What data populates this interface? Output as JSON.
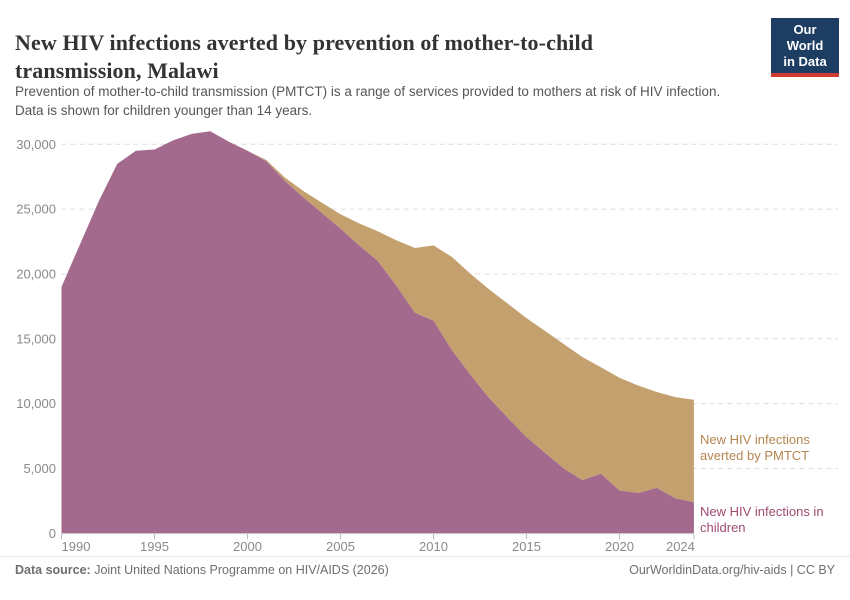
{
  "logo": {
    "line1": "Our World",
    "line2": "in Data",
    "bg": "#1d3d63",
    "accent": "#cf3a33"
  },
  "chart_data": {
    "type": "area",
    "stacked": true,
    "title": "New HIV infections averted by prevention of mother-to-child transmission, Malawi",
    "subtitle_lines": [
      "Prevention of mother-to-child transmission (PMTCT) is a range of services provided to mothers at risk of HIV infection.",
      "Data is shown for children younger than 14 years."
    ],
    "x": [
      1990,
      1991,
      1992,
      1993,
      1994,
      1995,
      1996,
      1997,
      1998,
      1999,
      2000,
      2001,
      2002,
      2003,
      2004,
      2005,
      2006,
      2007,
      2008,
      2009,
      2010,
      2011,
      2012,
      2013,
      2014,
      2015,
      2016,
      2017,
      2018,
      2019,
      2020,
      2021,
      2022,
      2023,
      2024
    ],
    "xlim": [
      1990,
      2024
    ],
    "ylim": [
      0,
      31000
    ],
    "xticks": [
      1990,
      1995,
      2000,
      2005,
      2010,
      2015,
      2020,
      2024
    ],
    "yticks": [
      0,
      5000,
      10000,
      15000,
      20000,
      25000,
      30000
    ],
    "ytick_labels": [
      "0",
      "5,000",
      "10,000",
      "15,000",
      "20,000",
      "25,000",
      "30,000"
    ],
    "grid": "horizontal-dashed",
    "legend_position": "right-inline",
    "series": [
      {
        "name": "New HIV infections in children",
        "color": "#a36a8e",
        "label_color": "#a04a73",
        "values": [
          19000,
          22300,
          25600,
          28500,
          29500,
          29600,
          30300,
          30800,
          31000,
          30200,
          29500,
          28700,
          27200,
          25900,
          24700,
          23500,
          22200,
          21000,
          19100,
          17000,
          16400,
          14100,
          12200,
          10400,
          8900,
          7400,
          6200,
          5000,
          4100,
          4600,
          3300,
          3100,
          3500,
          2700,
          2400
        ]
      },
      {
        "name": "New HIV infections averted by PMTCT",
        "color": "#c5a06f",
        "label_color": "#b5854f",
        "values": [
          0,
          0,
          0,
          0,
          0,
          0,
          0,
          0,
          0,
          0,
          0,
          100,
          250,
          500,
          800,
          1100,
          1700,
          2300,
          3500,
          5000,
          5800,
          7200,
          7800,
          8400,
          8800,
          9200,
          9400,
          9600,
          9500,
          8200,
          8700,
          8300,
          7400,
          7800,
          7900
        ]
      }
    ]
  },
  "footer": {
    "source_label": "Data source:",
    "source_text": " Joint United Nations Programme on HIV/AIDS (2026)",
    "credit": "OurWorldinData.org/hiv-aids | CC BY"
  }
}
